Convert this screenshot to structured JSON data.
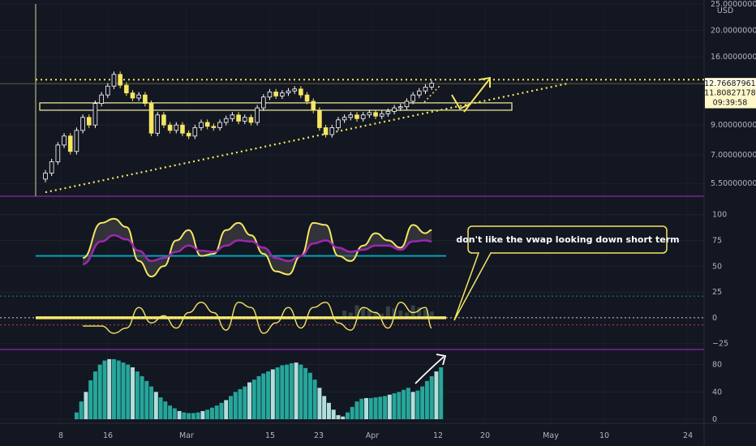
{
  "chart_data": [
    {
      "type": "candlestick",
      "currency": "USD",
      "scale": "log",
      "y_ticks": [
        "25.00000000",
        "20.00000000",
        "16.00000000",
        "9.00000000",
        "7.00000000",
        "5.50000000"
      ],
      "last_price": "12.76687961",
      "tag2_price": "11.80827178",
      "tag2_time": "09:39:58",
      "ylim": [
        5.0,
        25.0
      ],
      "resistance": 13.2,
      "support_zone": [
        10.2,
        10.85
      ],
      "trendline": {
        "from": {
          "day": 0,
          "price": 5.1
        },
        "to": {
          "day": 84,
          "price": 12.8
        }
      },
      "days": [
        0,
        1,
        2,
        3,
        4,
        5,
        6,
        7,
        8,
        9,
        10,
        11,
        12,
        13,
        14,
        15,
        16,
        17,
        18,
        19,
        20,
        21,
        22,
        23,
        24,
        25,
        26,
        27,
        28,
        29,
        30,
        31,
        32,
        33,
        34,
        35,
        36,
        37,
        38,
        39,
        40,
        41,
        42,
        43,
        44,
        45,
        46,
        47,
        48,
        49,
        50,
        51,
        52,
        53,
        54,
        55,
        56,
        57,
        58,
        59,
        60,
        61,
        62
      ],
      "close": [
        6.0,
        6.6,
        7.6,
        8.2,
        7.2,
        8.6,
        9.6,
        9.0,
        10.8,
        11.6,
        12.5,
        13.8,
        12.6,
        11.8,
        11.3,
        11.6,
        10.8,
        8.4,
        9.8,
        9.0,
        8.6,
        9.0,
        8.4,
        8.2,
        8.8,
        9.2,
        8.9,
        8.8,
        9.2,
        9.5,
        9.8,
        9.3,
        9.6,
        9.2,
        10.4,
        11.4,
        11.9,
        11.5,
        11.8,
        12.0,
        12.2,
        11.6,
        11.0,
        10.2,
        8.8,
        8.3,
        8.8,
        9.4,
        9.6,
        9.8,
        9.5,
        9.8,
        10.0,
        9.7,
        9.9,
        10.1,
        10.4,
        10.5,
        11.0,
        11.6,
        12.0,
        12.4,
        12.8
      ]
    },
    {
      "type": "line",
      "y_ticks": [
        "100",
        "75",
        "50",
        "25",
        "0",
        "−25"
      ],
      "ylim": [
        -30,
        110
      ],
      "baseline": 60,
      "x": [
        6,
        9,
        11,
        13,
        15,
        17,
        19,
        21,
        23,
        25,
        27,
        29,
        31,
        33,
        35,
        37,
        39,
        41,
        43,
        45,
        47,
        49,
        51,
        53,
        55,
        57,
        59,
        61,
        62
      ],
      "series": [
        {
          "values": [
            58,
            92,
            96,
            88,
            55,
            40,
            50,
            75,
            85,
            60,
            62,
            85,
            92,
            80,
            62,
            45,
            42,
            60,
            92,
            90,
            60,
            55,
            70,
            82,
            75,
            68,
            90,
            82,
            85
          ]
        },
        {
          "values": [
            52,
            74,
            80,
            76,
            65,
            55,
            58,
            64,
            70,
            65,
            64,
            70,
            75,
            74,
            68,
            58,
            55,
            60,
            72,
            75,
            68,
            64,
            66,
            70,
            70,
            66,
            74,
            75,
            74
          ]
        },
        {
          "values": [
            -8,
            -8,
            -15,
            -10,
            10,
            -5,
            2,
            -10,
            5,
            15,
            5,
            -12,
            15,
            10,
            -15,
            -5,
            10,
            -10,
            10,
            15,
            -5,
            -12,
            10,
            5,
            -10,
            15,
            5,
            10,
            -10
          ]
        }
      ],
      "note": "don't like the vwap looking down short term"
    },
    {
      "type": "bar",
      "y_ticks": [
        "80",
        "40",
        "0"
      ],
      "ylim": [
        0,
        95
      ],
      "start_day": 5,
      "values": [
        10,
        26,
        40,
        57,
        70,
        80,
        86,
        88,
        88,
        86,
        83,
        80,
        76,
        70,
        63,
        56,
        48,
        40,
        32,
        26,
        20,
        16,
        12,
        10,
        9,
        9,
        10,
        12,
        14,
        17,
        20,
        24,
        28,
        34,
        40,
        44,
        48,
        54,
        58,
        63,
        67,
        70,
        73,
        76,
        79,
        80,
        82,
        83,
        80,
        75,
        68,
        58,
        46,
        34,
        24,
        14,
        6,
        4,
        10,
        18,
        26,
        30,
        31,
        31,
        32,
        33,
        34,
        36,
        38,
        40,
        43,
        46,
        40,
        42,
        48,
        56,
        63,
        70,
        76
      ]
    }
  ],
  "x_labels": [
    "8",
    "16",
    "Mar",
    "15",
    "23",
    "Apr",
    "12",
    "20",
    "May",
    "10",
    "24"
  ]
}
